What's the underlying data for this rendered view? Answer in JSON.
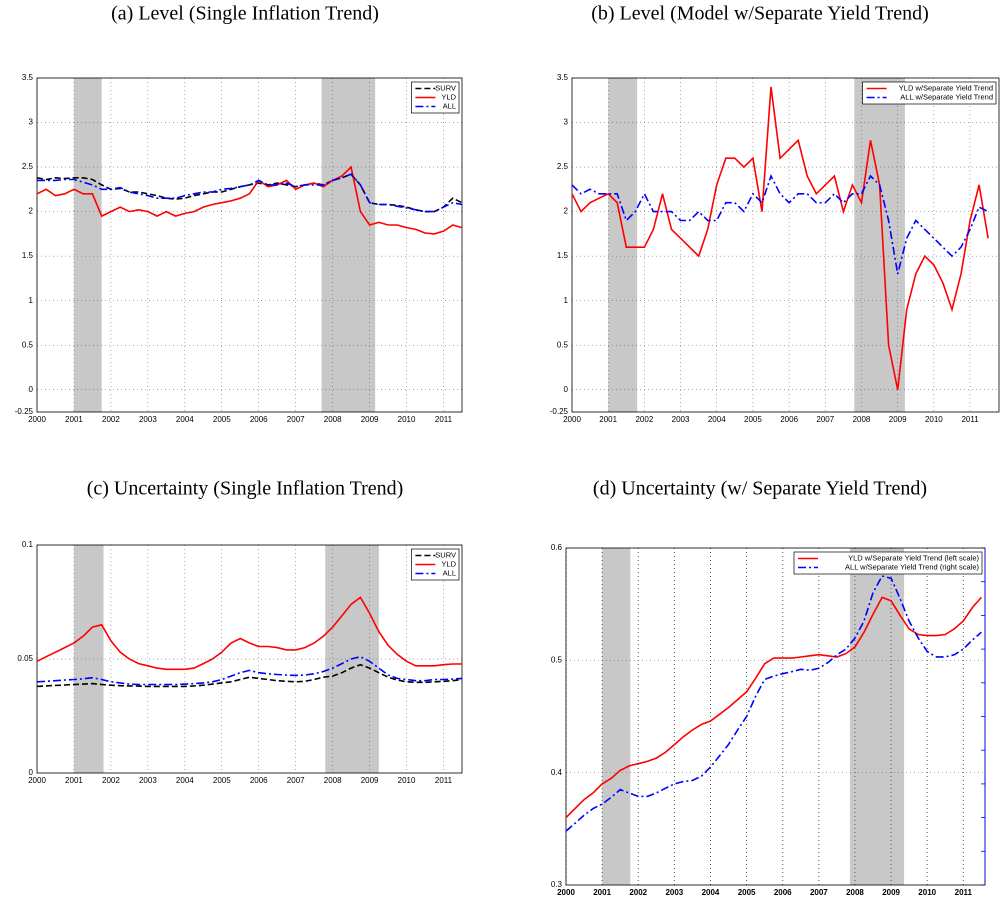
{
  "chart_data": [
    {
      "type": "line",
      "title": "(a) Level (Single Inflation Trend)",
      "x": [
        2000,
        2000.25,
        2000.5,
        2000.75,
        2001,
        2001.25,
        2001.5,
        2001.75,
        2002,
        2002.25,
        2002.5,
        2002.75,
        2003,
        2003.25,
        2003.5,
        2003.75,
        2004,
        2004.25,
        2004.5,
        2004.75,
        2005,
        2005.25,
        2005.5,
        2005.75,
        2006,
        2006.25,
        2006.5,
        2006.75,
        2007,
        2007.25,
        2007.5,
        2007.75,
        2008,
        2008.25,
        2008.5,
        2008.75,
        2009,
        2009.25,
        2009.5,
        2009.75,
        2010,
        2010.25,
        2010.5,
        2010.75,
        2011,
        2011.25,
        2011.5
      ],
      "series": [
        {
          "name": "SURV",
          "color": "#000000",
          "dash": "dash",
          "values": [
            2.38,
            2.36,
            2.38,
            2.37,
            2.38,
            2.38,
            2.36,
            2.3,
            2.25,
            2.26,
            2.22,
            2.22,
            2.2,
            2.18,
            2.15,
            2.14,
            2.15,
            2.18,
            2.2,
            2.22,
            2.22,
            2.25,
            2.28,
            2.3,
            2.32,
            2.3,
            2.32,
            2.3,
            2.28,
            2.3,
            2.32,
            2.3,
            2.35,
            2.38,
            2.42,
            2.3,
            2.1,
            2.08,
            2.08,
            2.07,
            2.05,
            2.02,
            2.0,
            2.0,
            2.05,
            2.15,
            2.1
          ]
        },
        {
          "name": "YLD",
          "color": "#ff0000",
          "dash": "solid",
          "values": [
            2.2,
            2.25,
            2.18,
            2.2,
            2.25,
            2.2,
            2.2,
            1.95,
            2.0,
            2.05,
            2.0,
            2.02,
            2.0,
            1.95,
            2.0,
            1.95,
            1.98,
            2.0,
            2.05,
            2.08,
            2.1,
            2.12,
            2.15,
            2.2,
            2.35,
            2.28,
            2.3,
            2.35,
            2.25,
            2.3,
            2.32,
            2.28,
            2.35,
            2.4,
            2.5,
            2.0,
            1.85,
            1.88,
            1.85,
            1.85,
            1.82,
            1.8,
            1.76,
            1.75,
            1.78,
            1.85,
            1.82
          ]
        },
        {
          "name": "ALL",
          "color": "#0000ff",
          "dash": "dashdot",
          "values": [
            2.35,
            2.35,
            2.35,
            2.36,
            2.36,
            2.33,
            2.3,
            2.25,
            2.25,
            2.27,
            2.22,
            2.2,
            2.18,
            2.15,
            2.15,
            2.15,
            2.18,
            2.2,
            2.22,
            2.22,
            2.25,
            2.26,
            2.28,
            2.3,
            2.35,
            2.3,
            2.3,
            2.32,
            2.28,
            2.3,
            2.3,
            2.3,
            2.35,
            2.38,
            2.42,
            2.3,
            2.1,
            2.08,
            2.08,
            2.06,
            2.04,
            2.02,
            2.0,
            2.0,
            2.05,
            2.1,
            2.08
          ]
        }
      ],
      "xlim": [
        2000,
        2011.5
      ],
      "xticks": [
        2000,
        2001,
        2002,
        2003,
        2004,
        2005,
        2006,
        2007,
        2008,
        2009,
        2010,
        2011
      ],
      "ylim": [
        -0.25,
        3.5
      ],
      "yticks": [
        -0.25,
        0,
        0.5,
        1,
        1.5,
        2,
        2.5,
        3,
        3.5
      ],
      "shading": [
        [
          2001.0,
          2001.75
        ],
        [
          2007.7,
          2009.15
        ]
      ],
      "grid": true,
      "legend": "upper right"
    },
    {
      "type": "line",
      "title": "(b) Level (Model w/Separate Yield Trend)",
      "x": [
        2000,
        2000.25,
        2000.5,
        2000.75,
        2001,
        2001.25,
        2001.5,
        2001.75,
        2002,
        2002.25,
        2002.5,
        2002.75,
        2003,
        2003.25,
        2003.5,
        2003.75,
        2004,
        2004.25,
        2004.5,
        2004.75,
        2005,
        2005.25,
        2005.5,
        2005.75,
        2006,
        2006.25,
        2006.5,
        2006.75,
        2007,
        2007.25,
        2007.5,
        2007.75,
        2008,
        2008.25,
        2008.5,
        2008.75,
        2009,
        2009.25,
        2009.5,
        2009.75,
        2010,
        2010.25,
        2010.5,
        2010.75,
        2011,
        2011.25,
        2011.5
      ],
      "series": [
        {
          "name": "YLD w/Separate Yield Trend",
          "color": "#ff0000",
          "dash": "solid",
          "values": [
            2.2,
            2.0,
            2.1,
            2.15,
            2.2,
            2.1,
            1.6,
            1.6,
            1.6,
            1.8,
            2.2,
            1.8,
            1.7,
            1.6,
            1.5,
            1.8,
            2.3,
            2.6,
            2.6,
            2.5,
            2.6,
            2.0,
            3.4,
            2.6,
            2.7,
            2.8,
            2.4,
            2.2,
            2.3,
            2.4,
            2.0,
            2.3,
            2.1,
            2.8,
            2.3,
            0.5,
            0.0,
            0.9,
            1.3,
            1.5,
            1.4,
            1.2,
            0.9,
            1.3,
            1.9,
            2.3,
            1.7
          ]
        },
        {
          "name": "ALL w/Separate Yield Trend",
          "color": "#0000ff",
          "dash": "dashdot",
          "values": [
            2.3,
            2.2,
            2.25,
            2.2,
            2.2,
            2.2,
            1.9,
            2.0,
            2.2,
            2.0,
            2.0,
            2.0,
            1.9,
            1.9,
            2.0,
            1.9,
            1.9,
            2.1,
            2.1,
            2.0,
            2.2,
            2.1,
            2.4,
            2.2,
            2.1,
            2.2,
            2.2,
            2.1,
            2.1,
            2.2,
            2.1,
            2.2,
            2.2,
            2.4,
            2.3,
            1.9,
            1.3,
            1.7,
            1.9,
            1.8,
            1.7,
            1.6,
            1.5,
            1.6,
            1.8,
            2.05,
            2.0
          ]
        }
      ],
      "xlim": [
        2000,
        2011.8
      ],
      "xticks": [
        2000,
        2001,
        2002,
        2003,
        2004,
        2005,
        2006,
        2007,
        2008,
        2009,
        2010,
        2011
      ],
      "ylim": [
        -0.25,
        3.5
      ],
      "yticks": [
        -0.25,
        0,
        0.5,
        1,
        1.5,
        2,
        2.5,
        3,
        3.5
      ],
      "shading": [
        [
          2001.0,
          2001.8
        ],
        [
          2007.8,
          2009.2
        ]
      ],
      "grid": true,
      "legend": "upper right"
    },
    {
      "type": "line",
      "title": "(c) Uncertainty (Single Inflation Trend)",
      "x": [
        2000,
        2000.25,
        2000.5,
        2000.75,
        2001,
        2001.25,
        2001.5,
        2001.75,
        2002,
        2002.25,
        2002.5,
        2002.75,
        2003,
        2003.25,
        2003.5,
        2003.75,
        2004,
        2004.25,
        2004.5,
        2004.75,
        2005,
        2005.25,
        2005.5,
        2005.75,
        2006,
        2006.25,
        2006.5,
        2006.75,
        2007,
        2007.25,
        2007.5,
        2007.75,
        2008,
        2008.25,
        2008.5,
        2008.75,
        2009,
        2009.25,
        2009.5,
        2009.75,
        2010,
        2010.25,
        2010.5,
        2010.75,
        2011,
        2011.25,
        2011.5
      ],
      "series": [
        {
          "name": "SURV",
          "color": "#000000",
          "dash": "dash",
          "values": [
            0.038,
            0.0382,
            0.0384,
            0.0386,
            0.0388,
            0.039,
            0.0392,
            0.0388,
            0.0385,
            0.0383,
            0.0382,
            0.0381,
            0.038,
            0.038,
            0.038,
            0.038,
            0.038,
            0.0382,
            0.0385,
            0.039,
            0.0395,
            0.04,
            0.041,
            0.042,
            0.0415,
            0.041,
            0.0405,
            0.0402,
            0.04,
            0.0402,
            0.041,
            0.042,
            0.0425,
            0.044,
            0.046,
            0.0475,
            0.046,
            0.044,
            0.042,
            0.0408,
            0.04,
            0.0398,
            0.0398,
            0.04,
            0.0402,
            0.0405,
            0.041
          ]
        },
        {
          "name": "YLD",
          "color": "#ff0000",
          "dash": "solid",
          "values": [
            0.049,
            0.051,
            0.053,
            0.055,
            0.057,
            0.06,
            0.064,
            0.065,
            0.058,
            0.053,
            0.05,
            0.048,
            0.047,
            0.046,
            0.0455,
            0.0455,
            0.0455,
            0.046,
            0.048,
            0.05,
            0.053,
            0.057,
            0.059,
            0.057,
            0.0555,
            0.0555,
            0.055,
            0.054,
            0.054,
            0.055,
            0.057,
            0.06,
            0.064,
            0.069,
            0.074,
            0.077,
            0.07,
            0.062,
            0.056,
            0.052,
            0.049,
            0.047,
            0.047,
            0.047,
            0.0475,
            0.0478,
            0.0478
          ]
        },
        {
          "name": "ALL",
          "color": "#0000ff",
          "dash": "dashdot",
          "values": [
            0.04,
            0.0402,
            0.0405,
            0.0408,
            0.041,
            0.0413,
            0.0418,
            0.041,
            0.04,
            0.0395,
            0.039,
            0.0388,
            0.0388,
            0.0388,
            0.0388,
            0.0388,
            0.039,
            0.0392,
            0.0395,
            0.04,
            0.041,
            0.0425,
            0.044,
            0.045,
            0.044,
            0.0435,
            0.0432,
            0.043,
            0.0428,
            0.043,
            0.0435,
            0.0445,
            0.046,
            0.048,
            0.05,
            0.051,
            0.049,
            0.046,
            0.043,
            0.0415,
            0.041,
            0.0405,
            0.0405,
            0.041,
            0.041,
            0.0412,
            0.0415
          ]
        }
      ],
      "xlim": [
        2000,
        2011.5
      ],
      "xticks": [
        2000,
        2001,
        2002,
        2003,
        2004,
        2005,
        2006,
        2007,
        2008,
        2009,
        2010,
        2011
      ],
      "ylim": [
        0,
        0.1
      ],
      "yticks": [
        0,
        0.05,
        0.1
      ],
      "shading": [
        [
          2001.0,
          2001.8
        ],
        [
          2007.8,
          2009.25
        ]
      ],
      "grid": true,
      "legend": "upper right"
    },
    {
      "type": "line",
      "title": "(d) Uncertainty (w/ Separate Yield Trend)",
      "x": [
        2000,
        2000.25,
        2000.5,
        2000.75,
        2001,
        2001.25,
        2001.5,
        2001.75,
        2002,
        2002.25,
        2002.5,
        2002.75,
        2003,
        2003.25,
        2003.5,
        2003.75,
        2004,
        2004.25,
        2004.5,
        2004.75,
        2005,
        2005.25,
        2005.5,
        2005.75,
        2006,
        2006.25,
        2006.5,
        2006.75,
        2007,
        2007.25,
        2007.5,
        2007.75,
        2008,
        2008.25,
        2008.5,
        2008.75,
        2009,
        2009.25,
        2009.5,
        2009.75,
        2010,
        2010.25,
        2010.5,
        2010.75,
        2011,
        2011.25,
        2011.5
      ],
      "series": [
        {
          "name": "YLD w/Separate Yield Trend (left scale)",
          "color": "#ff0000",
          "dash": "solid",
          "values": [
            0.36,
            0.368,
            0.376,
            0.382,
            0.39,
            0.395,
            0.402,
            0.406,
            0.408,
            0.41,
            0.413,
            0.418,
            0.425,
            0.432,
            0.438,
            0.443,
            0.446,
            0.452,
            0.458,
            0.465,
            0.472,
            0.484,
            0.497,
            0.502,
            0.502,
            0.502,
            0.503,
            0.504,
            0.505,
            0.504,
            0.503,
            0.506,
            0.512,
            0.525,
            0.541,
            0.556,
            0.553,
            0.54,
            0.528,
            0.523,
            0.522,
            0.522,
            0.523,
            0.528,
            0.535,
            0.547,
            0.556
          ]
        },
        {
          "name": "ALL w/Separate Yield Trend (right scale)",
          "color": "#0000ff",
          "dash": "dashdot",
          "axis": "y2",
          "values": [
            0.216,
            0.2183,
            0.2207,
            0.2227,
            0.224,
            0.226,
            0.2283,
            0.2273,
            0.2263,
            0.2263,
            0.2273,
            0.2287,
            0.23,
            0.2307,
            0.231,
            0.2323,
            0.235,
            0.2383,
            0.2417,
            0.246,
            0.25,
            0.256,
            0.261,
            0.262,
            0.2627,
            0.2633,
            0.264,
            0.2637,
            0.2643,
            0.266,
            0.2683,
            0.27,
            0.2733,
            0.2783,
            0.2867,
            0.2917,
            0.291,
            0.285,
            0.2783,
            0.2733,
            0.2693,
            0.2677,
            0.2677,
            0.2683,
            0.27,
            0.2727,
            0.275
          ]
        }
      ],
      "xlim": [
        2000,
        2011.6
      ],
      "xticks": [
        2000,
        2001,
        2002,
        2003,
        2004,
        2005,
        2006,
        2007,
        2008,
        2009,
        2010,
        2011
      ],
      "ylim": [
        0.3,
        0.6
      ],
      "yticks": [
        0.3,
        0.4,
        0.5,
        0.6
      ],
      "y2lim": [
        0.2,
        0.3
      ],
      "y2ticks": [
        0.2,
        0.21,
        0.22,
        0.23,
        0.24,
        0.25,
        0.26,
        0.27,
        0.28,
        0.29,
        0.3
      ],
      "shading": [
        [
          2001.0,
          2001.78
        ],
        [
          2007.86,
          2009.36
        ]
      ],
      "grid": true,
      "legend": "upper right"
    }
  ]
}
